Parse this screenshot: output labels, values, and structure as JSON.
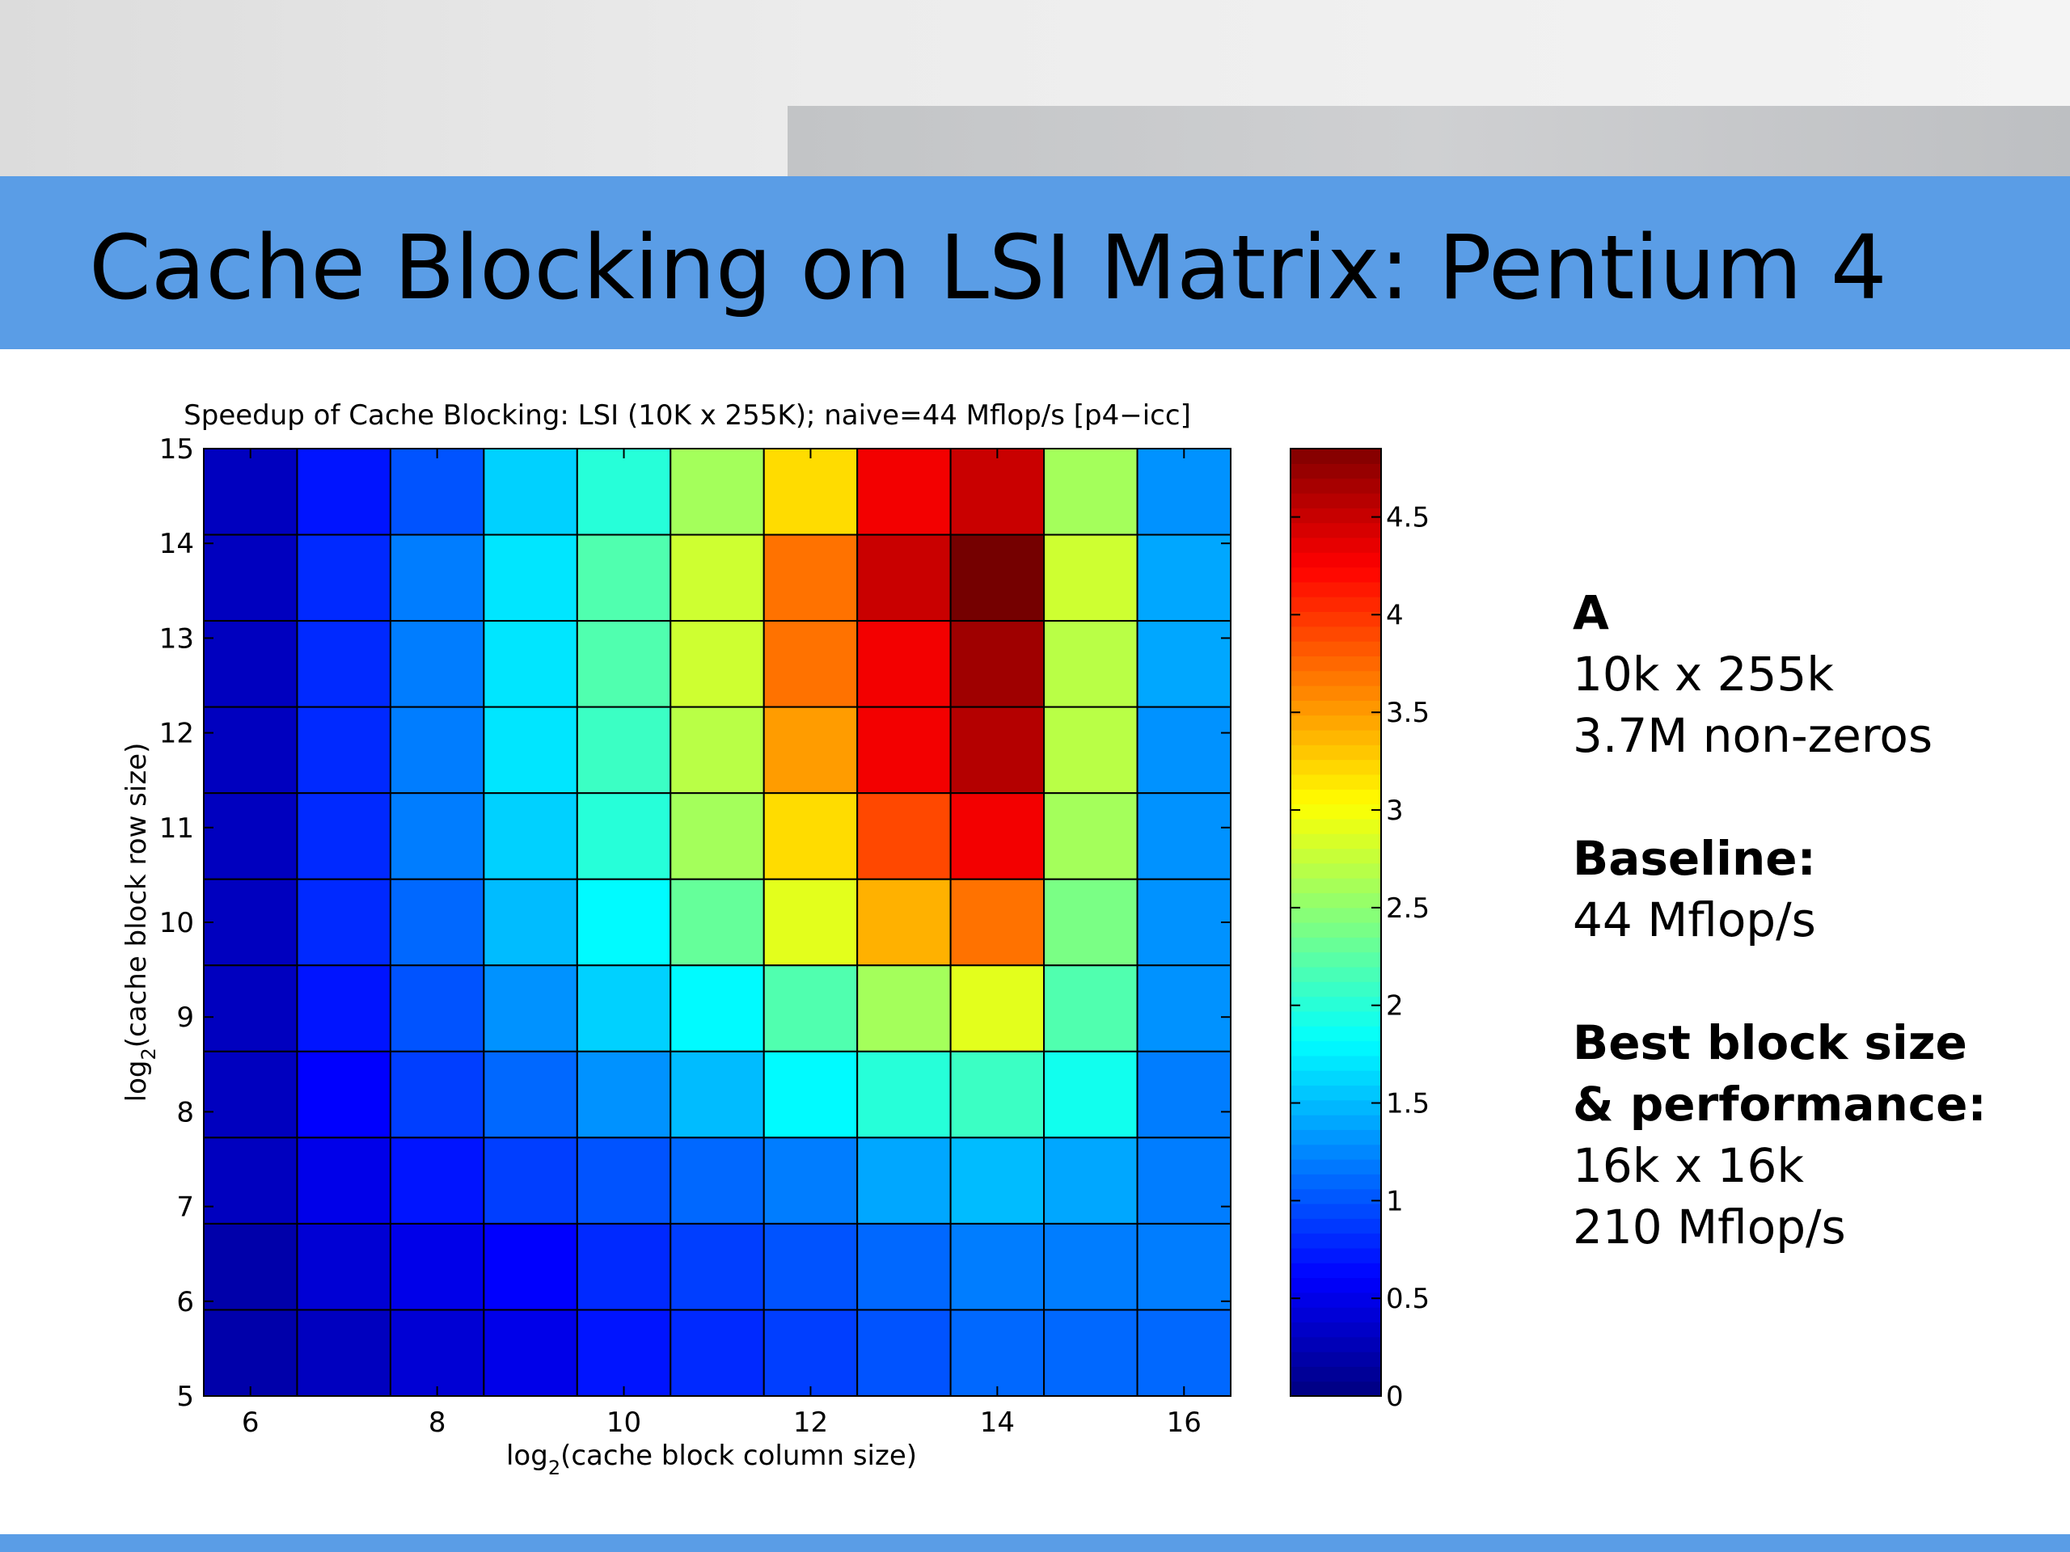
{
  "slide": {
    "title": "Cache Blocking on LSI Matrix: Pentium 4"
  },
  "chart_data": {
    "type": "heatmap",
    "title": "Speedup of Cache Blocking: LSI (10K x 255K); naive=44 Mflop/s [p4−icc]",
    "xlabel": {
      "prefix": "log",
      "subscript": "2",
      "suffix": "(cache block column size)"
    },
    "ylabel": {
      "prefix": "log",
      "subscript": "2",
      "suffix": "(cache block row size)"
    },
    "x_categories": [
      6,
      7,
      8,
      9,
      10,
      11,
      12,
      13,
      14,
      15,
      16
    ],
    "y_categories": [
      5,
      6,
      7,
      8,
      9,
      10,
      11,
      12,
      13,
      14,
      15
    ],
    "xlim": [
      5.5,
      16.5
    ],
    "ylim": [
      5,
      15
    ],
    "x_ticks": [
      6,
      8,
      10,
      12,
      14,
      16
    ],
    "y_ticks": [
      5,
      6,
      7,
      8,
      9,
      10,
      11,
      12,
      13,
      14,
      15
    ],
    "values_rows_top_to_bottom": [
      [
        0.3,
        0.7,
        1.0,
        1.6,
        2.0,
        2.6,
        3.2,
        4.3,
        4.5,
        2.6,
        1.3
      ],
      [
        0.3,
        0.8,
        1.2,
        1.7,
        2.2,
        2.8,
        3.7,
        4.5,
        4.9,
        2.8,
        1.4
      ],
      [
        0.3,
        0.8,
        1.2,
        1.7,
        2.2,
        2.8,
        3.7,
        4.3,
        4.7,
        2.7,
        1.4
      ],
      [
        0.3,
        0.8,
        1.2,
        1.7,
        2.1,
        2.7,
        3.5,
        4.3,
        4.6,
        2.7,
        1.3
      ],
      [
        0.3,
        0.8,
        1.2,
        1.6,
        2.0,
        2.6,
        3.2,
        3.9,
        4.3,
        2.6,
        1.3
      ],
      [
        0.3,
        0.8,
        1.1,
        1.5,
        1.8,
        2.3,
        2.9,
        3.4,
        3.7,
        2.4,
        1.3
      ],
      [
        0.3,
        0.7,
        1.0,
        1.3,
        1.6,
        1.8,
        2.2,
        2.6,
        2.9,
        2.2,
        1.3
      ],
      [
        0.3,
        0.6,
        0.9,
        1.1,
        1.3,
        1.5,
        1.8,
        2.0,
        2.1,
        1.9,
        1.2
      ],
      [
        0.3,
        0.5,
        0.7,
        0.9,
        1.0,
        1.1,
        1.2,
        1.4,
        1.5,
        1.4,
        1.2
      ],
      [
        0.2,
        0.4,
        0.5,
        0.6,
        0.8,
        0.9,
        1.0,
        1.1,
        1.2,
        1.2,
        1.2
      ],
      [
        0.2,
        0.3,
        0.4,
        0.5,
        0.7,
        0.8,
        0.9,
        1.0,
        1.1,
        1.1,
        1.1
      ]
    ],
    "colorbar": {
      "colormap": "jet",
      "range": [
        0,
        4.85
      ],
      "ticks": [
        0,
        0.5,
        1,
        1.5,
        2,
        2.5,
        3,
        3.5,
        4,
        4.5
      ]
    },
    "grid": true
  },
  "info": [
    {
      "heading": "A",
      "lines": [
        "10k x 255k",
        "3.7M non-zeros"
      ]
    },
    {
      "heading": "Baseline:",
      "lines": [
        "44 Mflop/s"
      ]
    },
    {
      "heading": "Best block size",
      "lines": [
        "& performance:",
        "16k x 16k",
        "210 Mflop/s"
      ],
      "heading_lines": 2
    }
  ]
}
